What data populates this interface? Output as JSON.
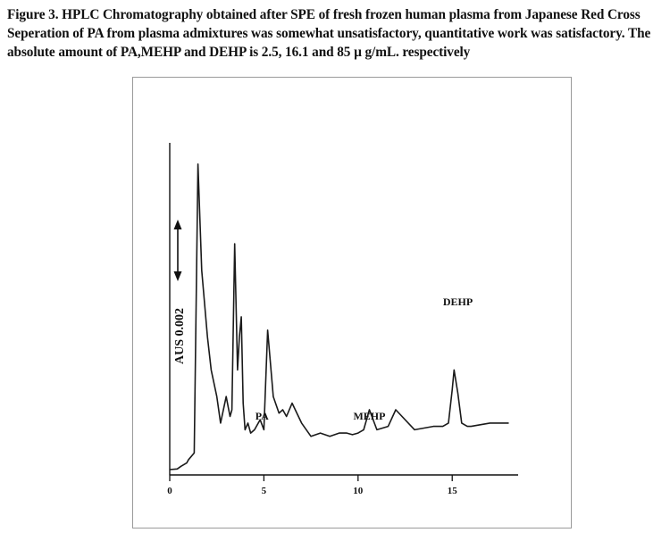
{
  "caption": "Figure 3. HPLC Chromatography obtained after SPE of fresh frozen human plasma from Japanese Red Cross Seperation of PA from plasma admixtures was somewhat unsatisfactory, quantitative work was satisfactory. The absolute amount of PA,MEHP and DEHP is 2.5, 16.1 and  85 µ g/mL. respectively",
  "chart_data": {
    "type": "line",
    "title": "",
    "xlabel": "",
    "ylabel": "AUS 0.002",
    "xlim": [
      0,
      18.5
    ],
    "ylim": [
      0,
      100
    ],
    "xticks": [
      0,
      5,
      10,
      15
    ],
    "tick_labels": [
      "0",
      "5",
      "10",
      "15"
    ],
    "grid": false,
    "peak_labels": [
      {
        "label": "PA",
        "x": 4.9
      },
      {
        "label": "MEHP",
        "x": 10.6
      },
      {
        "label": "DEHP",
        "x": 15.3
      }
    ],
    "series": [
      {
        "x": [
          0,
          0.4,
          0.6,
          0.9,
          1.0,
          1.3,
          1.5,
          1.7,
          2.0,
          2.2,
          2.5,
          2.7,
          3.0,
          3.2,
          3.3,
          3.45,
          3.6,
          3.7,
          3.8,
          3.9,
          4.0,
          4.15,
          4.3,
          4.5,
          4.8,
          5.0,
          5.2,
          5.5,
          5.8,
          6.0,
          6.2,
          6.5,
          7.0,
          7.5,
          8.0,
          8.5,
          9.0,
          9.4,
          9.7,
          10.0,
          10.3,
          10.6,
          11.0,
          11.3,
          11.6,
          12.0,
          13.0,
          14.0,
          14.5,
          14.8,
          15.0,
          15.1,
          15.3,
          15.5,
          15.8,
          16.0,
          17.0,
          18.0
        ],
        "y": [
          0.0,
          0.2,
          1.0,
          2.0,
          3.0,
          5.0,
          92.0,
          60.0,
          40.0,
          30.0,
          22.0,
          14.0,
          22.0,
          16.0,
          18.0,
          68.0,
          30.0,
          40.0,
          46.0,
          20.0,
          12.0,
          14.0,
          11.0,
          12.0,
          15.0,
          12.0,
          42.0,
          22.0,
          17.0,
          18.0,
          16.0,
          20.0,
          14.0,
          10.0,
          11.0,
          10.0,
          11.0,
          11.0,
          10.5,
          11.0,
          12.0,
          18.0,
          12.0,
          12.5,
          13.0,
          18.0,
          12.0,
          13.0,
          13.0,
          14.0,
          24.0,
          30.0,
          23.0,
          14.0,
          13.0,
          13.0,
          14.0,
          14.0
        ]
      }
    ]
  }
}
